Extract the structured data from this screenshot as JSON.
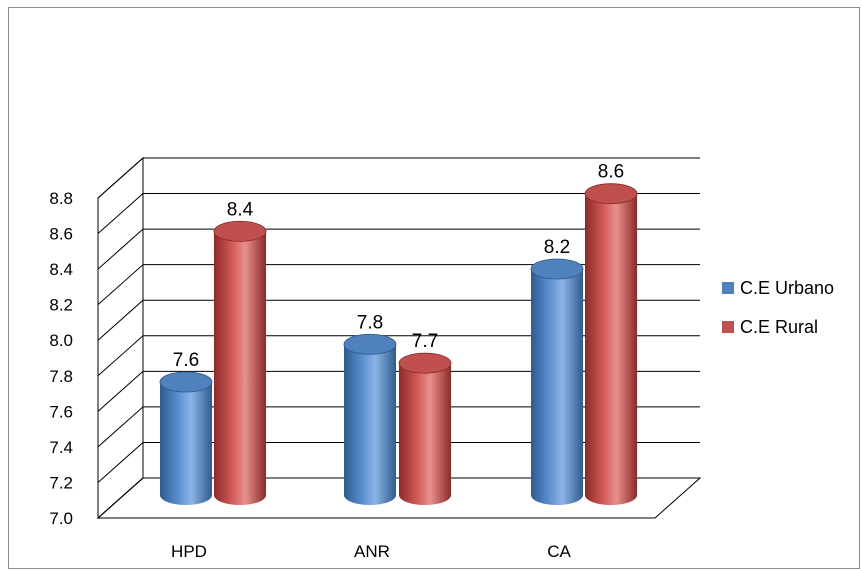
{
  "chart_data": {
    "type": "bar",
    "categories": [
      "HPD",
      "ANR",
      "CA"
    ],
    "series": [
      {
        "name": "C.E Urbano",
        "values": [
          7.6,
          7.8,
          8.2
        ],
        "color": "#4f81bd"
      },
      {
        "name": "C.E Rural",
        "values": [
          8.4,
          7.7,
          8.6
        ],
        "color": "#c0504d"
      }
    ],
    "data_labels": [
      [
        "7.6",
        "7.8",
        "8.2"
      ],
      [
        "8.4",
        "7.7",
        "8.6"
      ]
    ],
    "ylim": [
      7.0,
      8.8
    ],
    "y_ticks": [
      "7.0",
      "7.2",
      "7.4",
      "7.6",
      "7.8",
      "8.0",
      "8.2",
      "8.4",
      "8.6",
      "8.8"
    ],
    "grid": true,
    "style": "3d-cylinder",
    "legend": "right"
  }
}
